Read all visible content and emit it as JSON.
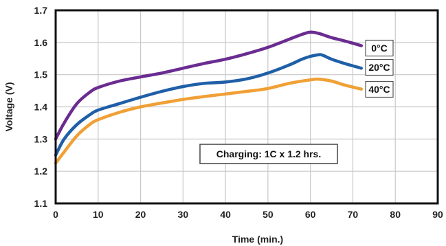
{
  "chart_data": {
    "type": "line",
    "title": "",
    "xlabel": "Time (min.)",
    "ylabel": "Voltage (V)",
    "xlim": [
      0,
      90
    ],
    "ylim": [
      1.1,
      1.7
    ],
    "xticks": [
      0,
      10,
      20,
      30,
      40,
      50,
      60,
      70,
      80,
      90
    ],
    "yticks": [
      1.1,
      1.2,
      1.3,
      1.4,
      1.5,
      1.6,
      1.7
    ],
    "grid": true,
    "series": [
      {
        "name": "0°C",
        "color": "#6a2c91",
        "x": [
          0,
          2,
          5,
          8,
          10,
          15,
          20,
          25,
          30,
          35,
          40,
          45,
          50,
          55,
          58,
          60,
          62,
          65,
          68,
          72
        ],
        "y": [
          1.3,
          1.35,
          1.41,
          1.445,
          1.46,
          1.48,
          1.493,
          1.505,
          1.52,
          1.535,
          1.548,
          1.565,
          1.585,
          1.61,
          1.625,
          1.632,
          1.628,
          1.615,
          1.605,
          1.59
        ]
      },
      {
        "name": "20°C",
        "color": "#1f5fa8",
        "x": [
          0,
          2,
          5,
          8,
          10,
          15,
          20,
          25,
          30,
          35,
          40,
          45,
          50,
          55,
          58,
          60,
          62,
          63,
          65,
          68,
          72
        ],
        "y": [
          1.25,
          1.3,
          1.345,
          1.375,
          1.39,
          1.41,
          1.43,
          1.448,
          1.463,
          1.473,
          1.477,
          1.487,
          1.505,
          1.53,
          1.548,
          1.557,
          1.562,
          1.56,
          1.548,
          1.535,
          1.52
        ]
      },
      {
        "name": "40°C",
        "color": "#f0a035",
        "x": [
          0,
          2,
          5,
          8,
          10,
          15,
          20,
          25,
          30,
          35,
          40,
          45,
          50,
          55,
          60,
          62,
          65,
          68,
          72
        ],
        "y": [
          1.225,
          1.26,
          1.31,
          1.345,
          1.36,
          1.383,
          1.4,
          1.412,
          1.423,
          1.432,
          1.44,
          1.448,
          1.457,
          1.473,
          1.484,
          1.486,
          1.48,
          1.468,
          1.455
        ]
      }
    ],
    "annotations": [
      {
        "text": "Charging: 1C x 1.2 hrs."
      }
    ]
  }
}
